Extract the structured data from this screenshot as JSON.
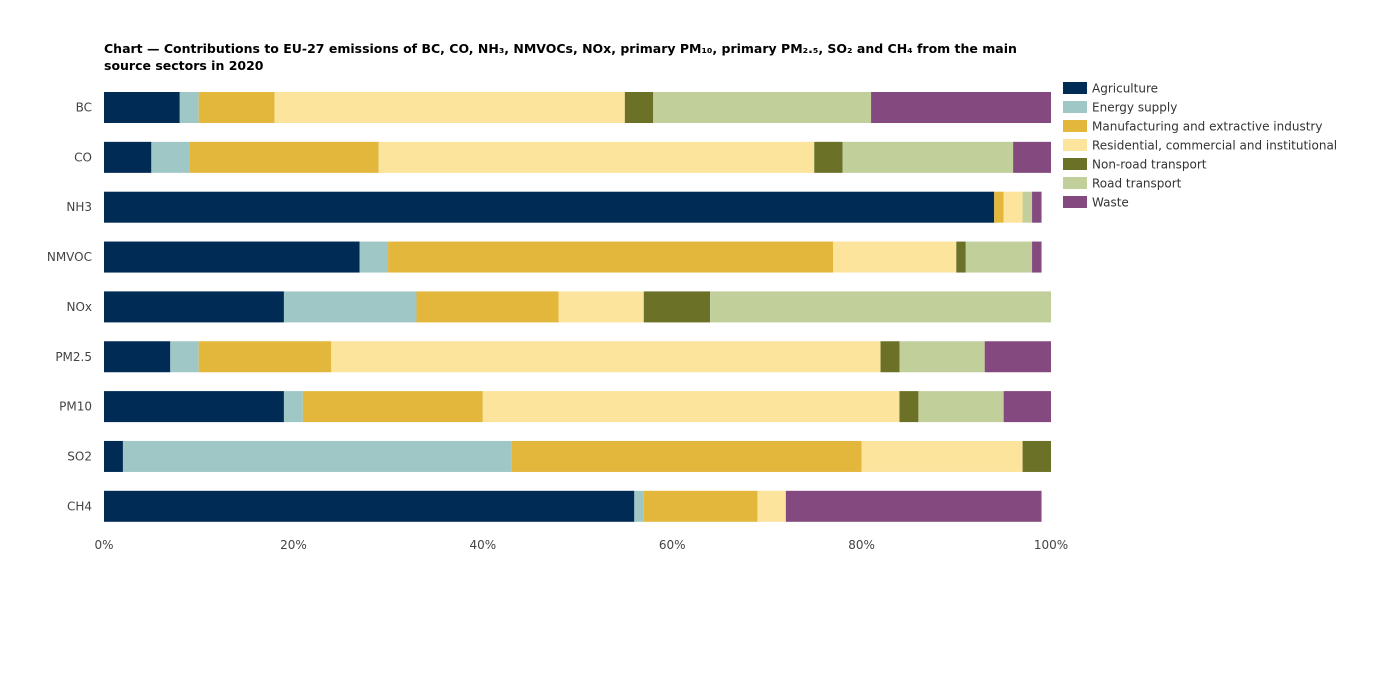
{
  "chart_data": {
    "type": "bar",
    "orientation": "horizontal",
    "stacked": true,
    "title": "Chart — Contributions to EU-27 emissions of BC, CO, NH₃, NMVOCs, NOx, primary PM₁₀, primary PM₂.₅, SO₂ and CH₄ from the main source sectors in 2020",
    "xlabel": "",
    "ylabel": "",
    "xlim": [
      0,
      100
    ],
    "x_ticks": [
      "0%",
      "20%",
      "40%",
      "60%",
      "80%",
      "100%"
    ],
    "grid": false,
    "legend_position": "top-right",
    "categories": [
      "BC",
      "CO",
      "NH3",
      "NMVOC",
      "NOx",
      "PM2.5",
      "PM10",
      "SO2",
      "CH4"
    ],
    "series": [
      {
        "name": "Agriculture",
        "color": "#002b55",
        "values": [
          8,
          5,
          94,
          27,
          19,
          7,
          19,
          2,
          56
        ]
      },
      {
        "name": "Energy supply",
        "color": "#9fc7c6",
        "values": [
          2,
          4,
          0,
          3,
          14,
          3,
          2,
          41,
          1
        ]
      },
      {
        "name": "Manufacturing and extractive industry",
        "color": "#e3b63c",
        "values": [
          8,
          20,
          1,
          47,
          15,
          14,
          19,
          37,
          12
        ]
      },
      {
        "name": "Residential, commercial and institutional",
        "color": "#fde49c",
        "values": [
          37,
          46,
          2,
          13,
          9,
          58,
          44,
          17,
          3
        ]
      },
      {
        "name": "Non-road transport",
        "color": "#6b7228",
        "values": [
          3,
          3,
          0,
          1,
          7,
          2,
          2,
          3,
          0
        ]
      },
      {
        "name": "Road transport",
        "color": "#c1cf9b",
        "values": [
          23,
          18,
          1,
          7,
          36,
          9,
          9,
          0,
          0
        ]
      },
      {
        "name": "Waste",
        "color": "#84497e",
        "values": [
          19,
          4,
          1,
          1,
          0,
          7,
          5,
          0,
          27
        ]
      }
    ]
  }
}
